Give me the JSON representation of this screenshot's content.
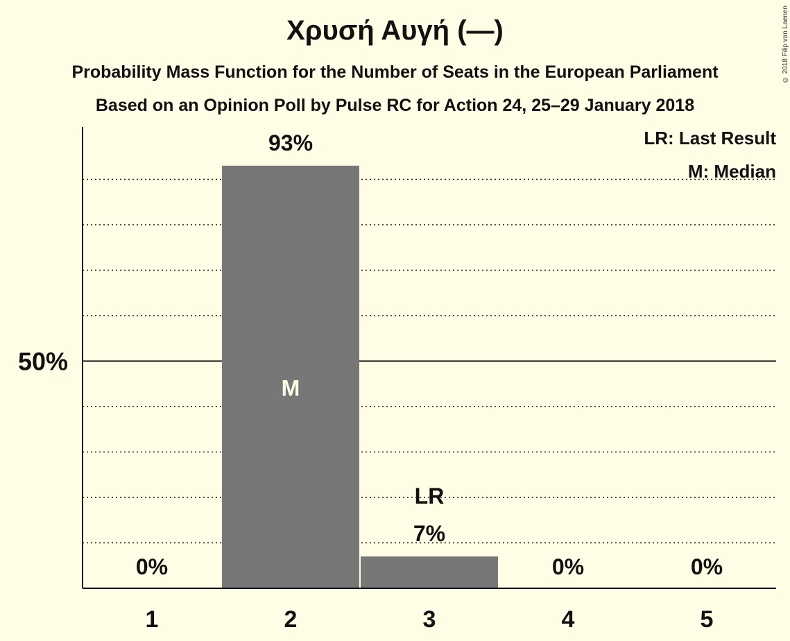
{
  "title": "Χρυσή Αυγή (—)",
  "subtitle1": "Probability Mass Function for the Number of Seats in the European Parliament",
  "subtitle2": "Based on an Opinion Poll by Pulse RC for Action 24, 25–29 January 2018",
  "copyright": "© 2018 Filip van Laenen",
  "legend": {
    "lr": "LR: Last Result",
    "m": "M: Median"
  },
  "chart_data": {
    "type": "bar",
    "categories": [
      "1",
      "2",
      "3",
      "4",
      "5"
    ],
    "values": [
      0,
      93,
      7,
      0,
      0
    ],
    "value_labels": [
      "0%",
      "93%",
      "7%",
      "0%",
      "0%"
    ],
    "ylim": [
      0,
      100
    ],
    "y_tick": {
      "value": 50,
      "label": "50%"
    },
    "gridlines": [
      10,
      20,
      30,
      40,
      60,
      70,
      80,
      90
    ],
    "median_category": "2",
    "median_label": "M",
    "last_result_category": "3",
    "last_result_label": "LR",
    "bar_color": "#777777"
  }
}
